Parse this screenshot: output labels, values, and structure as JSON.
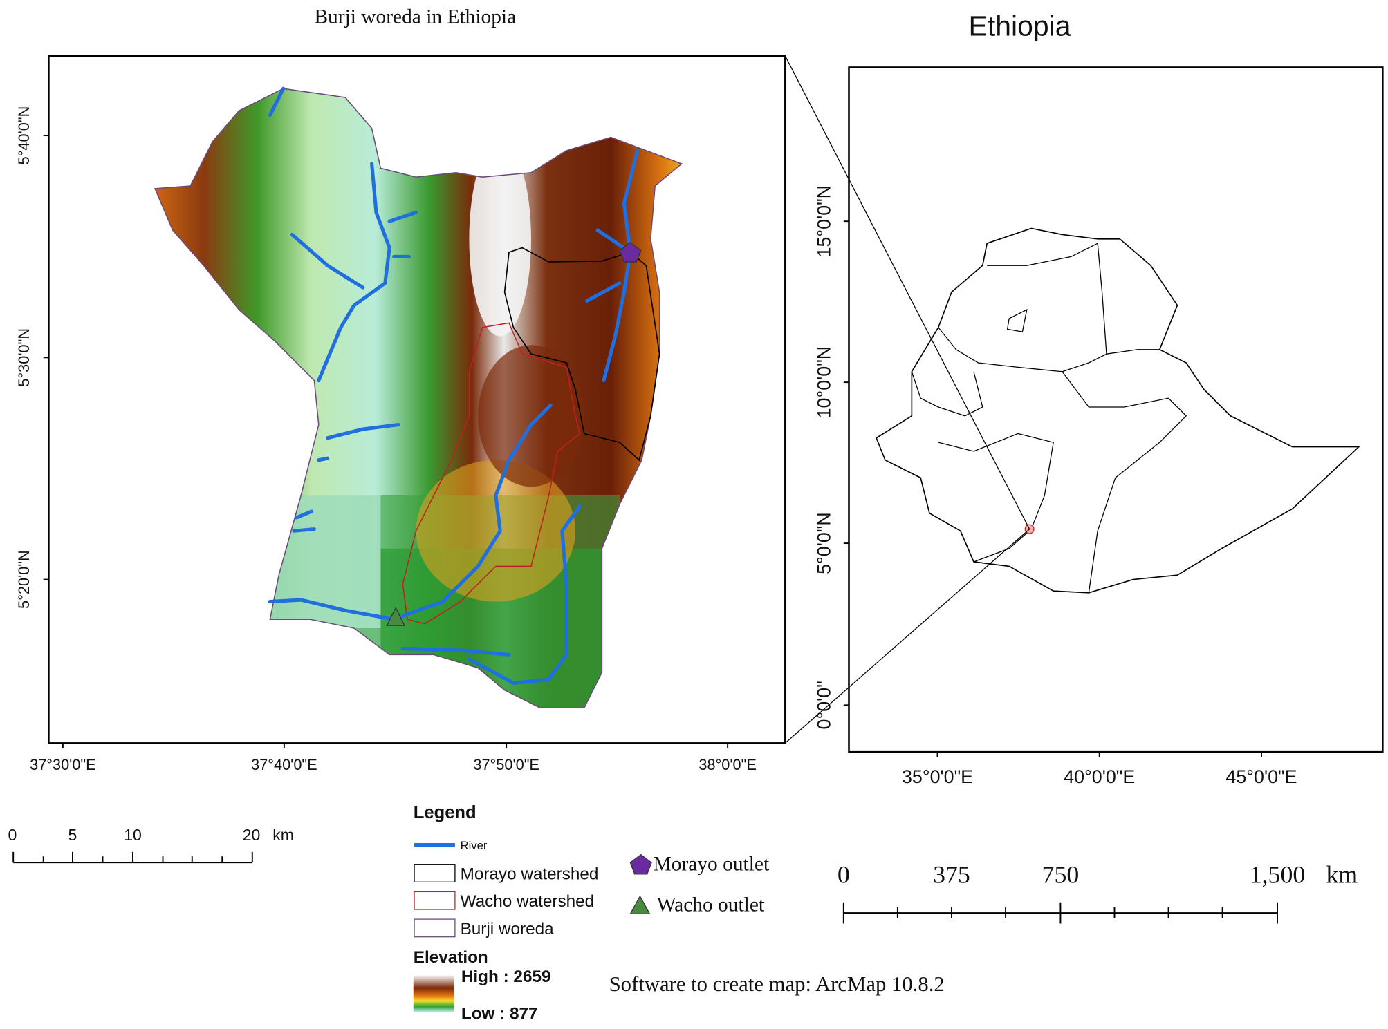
{
  "left_map": {
    "title": "Burji woreda in Ethiopia",
    "lat_labels": [
      "5°40'0\"N",
      "5°30'0\"N",
      "5°20'0\"N"
    ],
    "lon_labels": [
      "37°30'0\"E",
      "37°40'0\"E",
      "37°50'0\"E",
      "38°0'0\"E"
    ]
  },
  "right_map": {
    "title": "Ethiopia",
    "lat_labels": [
      "15°0'0\"N",
      "10°0'0\"N",
      "5°0'0\"N",
      "0°0'0\""
    ],
    "lon_labels": [
      "35°0'0\"E",
      "40°0'0\"E",
      "45°0'0\"E"
    ]
  },
  "scale_left": {
    "labels": [
      "0",
      "5",
      "10",
      "20"
    ],
    "unit": "km"
  },
  "scale_right": {
    "labels": [
      "0",
      "375",
      "750",
      "1,500"
    ],
    "unit": "km"
  },
  "legend": {
    "title": "Legend",
    "river": "River",
    "morayo_watershed": "Morayo watershed",
    "wacho_watershed": "Wacho watershed",
    "burji_woreda": "Burji woreda",
    "morayo_outlet": "Morayo outlet",
    "wacho_outlet": "Wacho outlet",
    "elevation_title": "Elevation",
    "high": "High : 2659",
    "low": "Low : 877"
  },
  "credit": "Software to create map: ArcMap 10.8.2"
}
